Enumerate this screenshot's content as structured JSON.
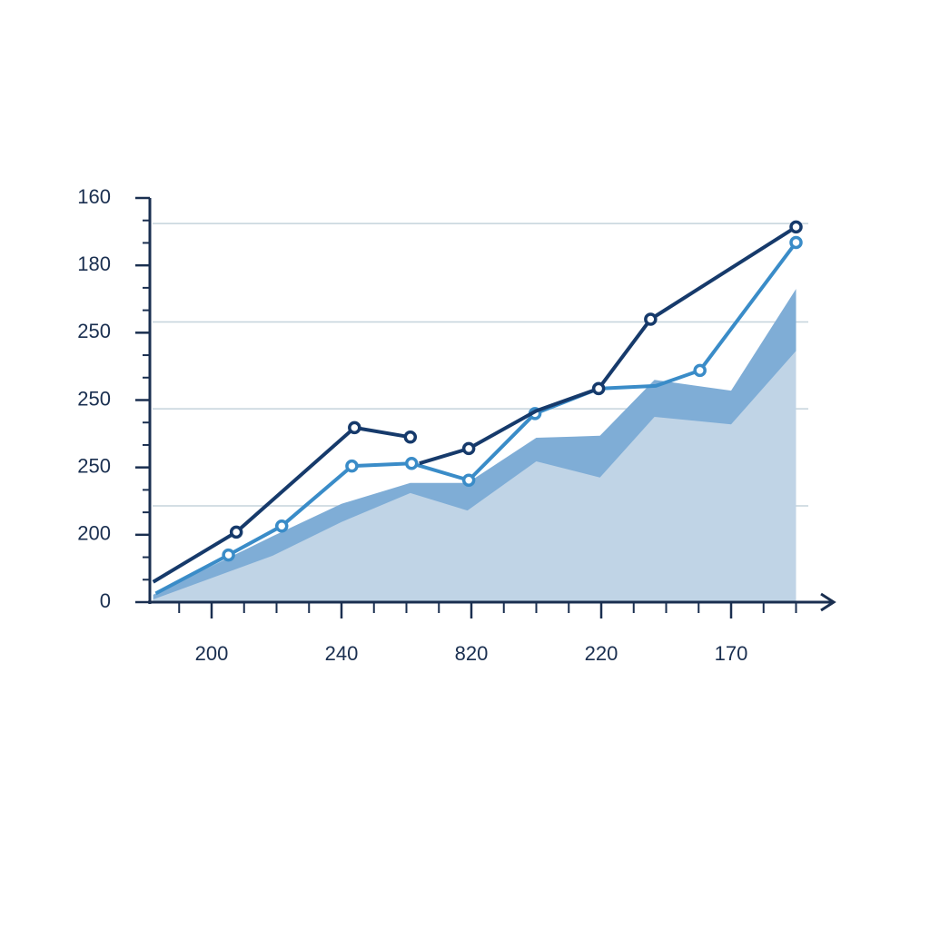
{
  "chart_data": {
    "type": "line",
    "xlim": [
      0.5,
      5.8
    ],
    "ylim": [
      0,
      6
    ],
    "xticks": [
      {
        "value": 1,
        "label": "200"
      },
      {
        "value": 2,
        "label": "240"
      },
      {
        "value": 3,
        "label": "820"
      },
      {
        "value": 4,
        "label": "220"
      },
      {
        "value": 5,
        "label": "170"
      }
    ],
    "yticks": [
      0,
      {
        "value": 1,
        "label": "200"
      },
      {
        "value": 2,
        "label": "250"
      },
      {
        "value": 3,
        "label": "250"
      },
      {
        "value": 4,
        "label": "250"
      },
      {
        "value": 5,
        "label": "180"
      },
      {
        "value": 6,
        "label": "160"
      }
    ],
    "ygrid": [
      1.43,
      2.87,
      4.16,
      5.62
    ],
    "areas": [
      {
        "color": "#7fadd6",
        "x": [
          0.55,
          1.47,
          2.0,
          2.53,
          2.97,
          3.5,
          3.99,
          4.41,
          5.0,
          5.5
        ],
        "values": [
          0.11,
          0.98,
          1.46,
          1.77,
          1.77,
          2.44,
          2.47,
          3.3,
          3.14,
          4.65
        ]
      },
      {
        "color": "#c0d4e6",
        "x": [
          0.55,
          1.47,
          2.0,
          2.53,
          2.97,
          3.5,
          3.99,
          4.41,
          5.0,
          5.5
        ],
        "values": [
          0.04,
          0.69,
          1.19,
          1.62,
          1.36,
          2.09,
          1.85,
          2.75,
          2.64,
          3.73
        ]
      }
    ],
    "series": [
      {
        "color": "#3a8cc8",
        "x": [
          0.57,
          1.13,
          1.54,
          2.08,
          2.54,
          2.98,
          3.49,
          3.98,
          4.42,
          4.76,
          5.5
        ],
        "values": [
          0.13,
          0.7,
          1.13,
          2.02,
          2.06,
          1.81,
          2.8,
          3.17,
          3.21,
          3.44,
          5.34
        ],
        "markers": [
          false,
          true,
          true,
          true,
          true,
          true,
          true,
          true,
          false,
          true,
          true
        ]
      },
      {
        "color": "#163a6b",
        "x": [
          0.55,
          1.19,
          2.1,
          2.53,
          null,
          2.6,
          2.98,
          3.5,
          3.98,
          4.38,
          5.5
        ],
        "values": [
          0.3,
          1.04,
          2.59,
          2.45,
          null,
          2.06,
          2.28,
          2.84,
          3.17,
          4.2,
          5.57
        ],
        "markers": [
          false,
          true,
          true,
          true,
          false,
          false,
          true,
          false,
          true,
          true,
          true
        ]
      }
    ]
  }
}
